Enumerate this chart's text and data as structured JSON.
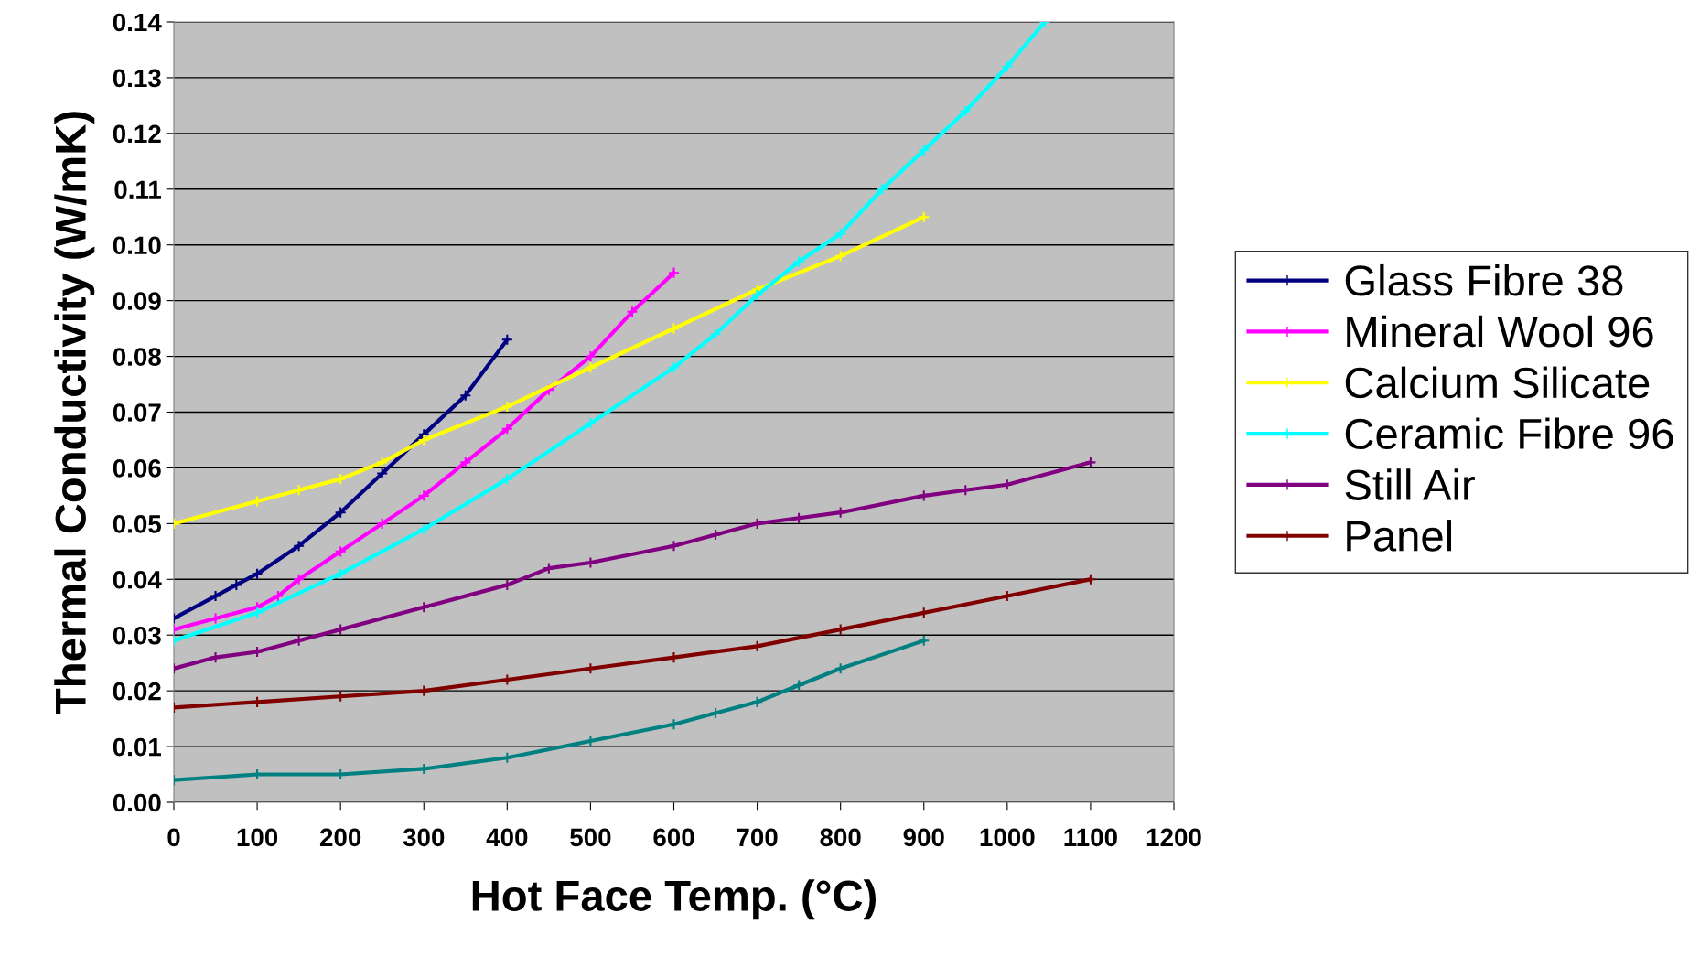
{
  "chart_data": {
    "type": "line",
    "xlabel": "Hot Face Temp. (°C)",
    "ylabel": "Thermal Conductivity (W/mK)",
    "xlim": [
      0,
      1200
    ],
    "xticks": [
      0,
      100,
      200,
      300,
      400,
      500,
      600,
      700,
      800,
      900,
      1000,
      1100,
      1200
    ],
    "ylim": [
      0,
      0.14
    ],
    "yticks": [
      {
        "value": 0,
        "label": "0.00"
      },
      {
        "value": 0.01,
        "label": "0.01"
      },
      {
        "value": 0.02,
        "label": "0.02"
      },
      {
        "value": 0.03,
        "label": "0.03"
      },
      {
        "value": 0.04,
        "label": "0.04"
      },
      {
        "value": 0.05,
        "label": "0.05"
      },
      {
        "value": 0.06,
        "label": "0.06"
      },
      {
        "value": 0.07,
        "label": "0.07"
      },
      {
        "value": 0.08,
        "label": "0.08"
      },
      {
        "value": 0.09,
        "label": "0.09"
      },
      {
        "value": 0.1,
        "label": "0.10"
      },
      {
        "value": 0.11,
        "label": "0.11"
      },
      {
        "value": 0.12,
        "label": "0.12"
      },
      {
        "value": 0.13,
        "label": "0.13"
      },
      {
        "value": 0.14,
        "label": "0.14"
      }
    ],
    "grid": "y",
    "legend": "right",
    "marker": "cross",
    "line_style": "solid",
    "series": [
      {
        "name": "Glass Fibre 38",
        "color": "#000080",
        "x": [
          0,
          50,
          75,
          100,
          150,
          200,
          250,
          300,
          350,
          400
        ],
        "values": [
          0.033,
          0.037,
          0.039,
          0.041,
          0.046,
          0.052,
          0.059,
          0.066,
          0.073,
          0.083
        ]
      },
      {
        "name": "Mineral Wool 96",
        "color": "#ff00ff",
        "x": [
          0,
          50,
          100,
          125,
          150,
          200,
          250,
          300,
          350,
          400,
          450,
          500,
          550,
          600
        ],
        "values": [
          0.031,
          0.033,
          0.035,
          0.037,
          0.04,
          0.045,
          0.05,
          0.055,
          0.061,
          0.067,
          0.074,
          0.08,
          0.088,
          0.095
        ]
      },
      {
        "name": "Calcium Silicate",
        "color": "#ffff00",
        "x": [
          0,
          100,
          150,
          200,
          250,
          300,
          400,
          500,
          600,
          700,
          800,
          900
        ],
        "values": [
          0.05,
          0.054,
          0.056,
          0.058,
          0.061,
          0.065,
          0.071,
          0.078,
          0.085,
          0.092,
          0.098,
          0.105
        ]
      },
      {
        "name": "Ceramic Fibre 96",
        "color": "#00ffff",
        "x": [
          0,
          100,
          200,
          300,
          400,
          500,
          600,
          650,
          700,
          750,
          800,
          850,
          900,
          950,
          1000,
          1045
        ],
        "values": [
          0.029,
          0.034,
          0.041,
          0.049,
          0.058,
          0.068,
          0.078,
          0.084,
          0.091,
          0.097,
          0.102,
          0.11,
          0.117,
          0.124,
          0.132,
          0.14
        ]
      },
      {
        "name": "Still Air",
        "color": "#800080",
        "x": [
          0,
          50,
          100,
          150,
          200,
          300,
          400,
          450,
          500,
          600,
          650,
          700,
          750,
          800,
          900,
          950,
          1000,
          1100
        ],
        "values": [
          0.024,
          0.026,
          0.027,
          0.029,
          0.031,
          0.035,
          0.039,
          0.042,
          0.043,
          0.046,
          0.048,
          0.05,
          0.051,
          0.052,
          0.055,
          0.056,
          0.057,
          0.061
        ]
      },
      {
        "name": "Panel",
        "color": "#800000",
        "x": [
          0,
          100,
          200,
          300,
          400,
          500,
          600,
          700,
          800,
          900,
          1000,
          1100
        ],
        "values": [
          0.017,
          0.018,
          0.019,
          0.02,
          0.022,
          0.024,
          0.026,
          0.028,
          0.031,
          0.034,
          0.037,
          0.04
        ]
      },
      {
        "color": "#008080",
        "x": [
          0,
          100,
          200,
          300,
          400,
          500,
          600,
          650,
          700,
          750,
          800,
          900
        ],
        "values": [
          0.004,
          0.005,
          0.005,
          0.006,
          0.008,
          0.011,
          0.014,
          0.016,
          0.018,
          0.021,
          0.024,
          0.029
        ]
      }
    ]
  }
}
